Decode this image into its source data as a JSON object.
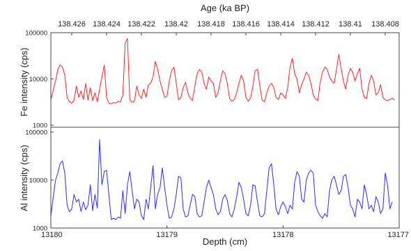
{
  "chart_data": [
    {
      "type": "line",
      "panel": "top",
      "xlabel_top": "Age (ka BP)",
      "ylabel": "Fe intensity (cps)",
      "yscale": "log",
      "ylim": [
        1000,
        100000
      ],
      "yticks": [
        1000,
        10000,
        100000
      ],
      "ytick_labels": [
        "1000",
        "10000",
        "100000"
      ],
      "top_axis_ticks": [
        138.426,
        138.424,
        138.422,
        138.42,
        138.418,
        138.416,
        138.414,
        138.412,
        138.41,
        138.408
      ],
      "top_axis_tick_labels": [
        "138.426",
        "138.424",
        "138.422",
        "138.42",
        "138.418",
        "138.416",
        "138.414",
        "138.412",
        "138.41",
        "138.408"
      ],
      "color": "#ff2020",
      "grid": false,
      "series": [
        {
          "depth_cm": [
            13180.0,
            13179.96,
            13179.94,
            13179.92,
            13179.9,
            13179.88,
            13179.86,
            13179.84,
            13179.82,
            13179.8,
            13179.78,
            13179.76,
            13179.74,
            13179.72,
            13179.7,
            13179.68,
            13179.66,
            13179.64,
            13179.62,
            13179.6,
            13179.58,
            13179.56,
            13179.54,
            13179.52,
            13179.5,
            13179.48,
            13179.46,
            13179.44,
            13179.42,
            13179.4,
            13179.38,
            13179.36,
            13179.34,
            13179.32,
            13179.3,
            13179.28,
            13179.26,
            13179.24,
            13179.22,
            13179.2,
            13179.18,
            13179.16,
            13179.14,
            13179.12,
            13179.1,
            13179.08,
            13179.06,
            13179.04,
            13179.02,
            13179.0,
            13178.98,
            13178.96,
            13178.94,
            13178.92,
            13178.9,
            13178.88,
            13178.86,
            13178.84,
            13178.82,
            13178.8,
            13178.78,
            13178.76,
            13178.74,
            13178.72,
            13178.7,
            13178.68,
            13178.66,
            13178.64,
            13178.62,
            13178.6,
            13178.58,
            13178.56,
            13178.54,
            13178.52,
            13178.5,
            13178.48,
            13178.46,
            13178.44,
            13178.42,
            13178.4,
            13178.38,
            13178.36,
            13178.34,
            13178.32,
            13178.3,
            13178.28,
            13178.26,
            13178.24,
            13178.22,
            13178.2,
            13178.18,
            13178.16,
            13178.14,
            13178.12,
            13178.1,
            13178.08,
            13178.06,
            13178.04,
            13178.02,
            13178.0,
            13177.98,
            13177.96,
            13177.94,
            13177.92,
            13177.9,
            13177.88,
            13177.86,
            13177.84,
            13177.82,
            13177.8,
            13177.78,
            13177.76,
            13177.74,
            13177.72,
            13177.7,
            13177.68,
            13177.66,
            13177.64,
            13177.62,
            13177.6,
            13177.58,
            13177.56,
            13177.54,
            13177.52,
            13177.5,
            13177.48,
            13177.46,
            13177.44,
            13177.42,
            13177.4,
            13177.38,
            13177.36,
            13177.34,
            13177.32,
            13177.3,
            13177.28,
            13177.26,
            13177.24,
            13177.22,
            13177.2,
            13177.18,
            13177.16,
            13177.14,
            13177.12,
            13177.1,
            13177.08,
            13177.06,
            13177.04,
            13177.02,
            13177.0
          ],
          "intensity_cps": [
            3500,
            9000,
            16000,
            20000,
            18000,
            12000,
            4000,
            3200,
            3000,
            3400,
            7000,
            4000,
            5500,
            3600,
            8000,
            3500,
            6500,
            3400,
            5000,
            3200,
            6000,
            11000,
            20000,
            4000,
            3000,
            2900,
            3100,
            3000,
            3300,
            3200,
            4500,
            60000,
            75000,
            3500,
            3100,
            3300,
            7000,
            4500,
            3800,
            6000,
            4000,
            7500,
            8000,
            11000,
            24000,
            16000,
            9000,
            6000,
            4000,
            4200,
            9000,
            15000,
            18000,
            8000,
            3500,
            4000,
            6500,
            8500,
            5000,
            3800,
            3400,
            7000,
            13000,
            16000,
            14000,
            8000,
            6000,
            11000,
            9000,
            8000,
            4000,
            5000,
            9000,
            15000,
            13000,
            8000,
            3700,
            3300,
            3600,
            5000,
            8000,
            12000,
            9000,
            4000,
            3300,
            3800,
            7000,
            15000,
            16000,
            7000,
            3500,
            3200,
            5000,
            7000,
            8000,
            6500,
            4000,
            3600,
            5000,
            4500,
            3800,
            6500,
            18000,
            28000,
            13000,
            10000,
            5000,
            7500,
            10000,
            14000,
            12000,
            8000,
            4500,
            3700,
            3400,
            8500,
            14000,
            18000,
            16000,
            11000,
            9000,
            8000,
            16000,
            34000,
            17000,
            9000,
            6000,
            12000,
            17000,
            14000,
            9000,
            13000,
            17000,
            6000,
            4000,
            3800,
            8000,
            12000,
            9000,
            4500,
            5000,
            7500,
            4000,
            3500,
            3400,
            3600,
            3800,
            3500
          ]
        }
      ]
    },
    {
      "type": "line",
      "panel": "bottom",
      "xlabel": "Depth (cm)",
      "ylabel": "Al intensity (cps)",
      "yscale": "log",
      "ylim": [
        1000,
        100000
      ],
      "xlim": [
        13180,
        13177
      ],
      "xticks": [
        13180,
        13179,
        13178,
        13177
      ],
      "xtick_labels": [
        "13180",
        "13179",
        "13178",
        "13177"
      ],
      "yticks": [
        1000,
        10000,
        100000
      ],
      "ytick_labels": [
        "1000",
        "10000",
        "100000"
      ],
      "color": "#2a2aff",
      "grid": false,
      "series": [
        {
          "depth_cm": [
            13180.0,
            13179.96,
            13179.94,
            13179.92,
            13179.9,
            13179.88,
            13179.86,
            13179.84,
            13179.82,
            13179.8,
            13179.78,
            13179.76,
            13179.74,
            13179.72,
            13179.7,
            13179.68,
            13179.66,
            13179.64,
            13179.62,
            13179.6,
            13179.58,
            13179.56,
            13179.54,
            13179.52,
            13179.5,
            13179.48,
            13179.46,
            13179.44,
            13179.42,
            13179.4,
            13179.38,
            13179.36,
            13179.34,
            13179.32,
            13179.3,
            13179.28,
            13179.26,
            13179.24,
            13179.22,
            13179.2,
            13179.18,
            13179.16,
            13179.14,
            13179.12,
            13179.1,
            13179.08,
            13179.06,
            13179.04,
            13179.02,
            13179.0,
            13178.98,
            13178.96,
            13178.94,
            13178.92,
            13178.9,
            13178.88,
            13178.86,
            13178.84,
            13178.82,
            13178.8,
            13178.78,
            13178.76,
            13178.74,
            13178.72,
            13178.7,
            13178.68,
            13178.66,
            13178.64,
            13178.62,
            13178.6,
            13178.58,
            13178.56,
            13178.54,
            13178.52,
            13178.5,
            13178.48,
            13178.46,
            13178.44,
            13178.42,
            13178.4,
            13178.38,
            13178.36,
            13178.34,
            13178.32,
            13178.3,
            13178.28,
            13178.26,
            13178.24,
            13178.22,
            13178.2,
            13178.18,
            13178.16,
            13178.14,
            13178.12,
            13178.1,
            13178.08,
            13178.06,
            13178.04,
            13178.02,
            13178.0,
            13177.98,
            13177.96,
            13177.94,
            13177.92,
            13177.9,
            13177.88,
            13177.86,
            13177.84,
            13177.82,
            13177.8,
            13177.78,
            13177.76,
            13177.74,
            13177.72,
            13177.7,
            13177.68,
            13177.66,
            13177.64,
            13177.62,
            13177.6,
            13177.58,
            13177.56,
            13177.54,
            13177.52,
            13177.5,
            13177.48,
            13177.46,
            13177.44,
            13177.42,
            13177.4,
            13177.38,
            13177.36,
            13177.34,
            13177.32,
            13177.3,
            13177.28,
            13177.26,
            13177.24,
            13177.22,
            13177.2,
            13177.18,
            13177.16,
            13177.14,
            13177.12,
            13177.1,
            13177.08,
            13177.06,
            13177.04,
            13177.02,
            13177.0
          ],
          "intensity_cps": [
            1800,
            10000,
            14000,
            22000,
            25000,
            14000,
            3000,
            2200,
            2500,
            5000,
            3500,
            4000,
            2200,
            3500,
            2400,
            3000,
            8000,
            2300,
            5000,
            2600,
            70000,
            8000,
            15000,
            16000,
            5000,
            1500,
            1600,
            1500,
            1700,
            1600,
            6000,
            2000,
            8000,
            15000,
            6000,
            2500,
            4000,
            3500,
            1800,
            1500,
            4000,
            2500,
            7000,
            20000,
            2500,
            5000,
            7000,
            18000,
            7000,
            3000,
            1600,
            1700,
            2500,
            5000,
            12000,
            11000,
            2500,
            1700,
            1800,
            3000,
            5000,
            4500,
            2000,
            1700,
            1800,
            3500,
            7000,
            10000,
            7000,
            5000,
            2500,
            1900,
            2200,
            4000,
            5000,
            3800,
            2000,
            1700,
            2500,
            4500,
            9000,
            7000,
            4000,
            2000,
            1800,
            3000,
            8000,
            7500,
            3500,
            1800,
            1700,
            2000,
            6000,
            18000,
            22000,
            8000,
            2500,
            1900,
            2800,
            3500,
            2800,
            2000,
            3000,
            2500,
            9000,
            15000,
            12000,
            4000,
            3500,
            10000,
            14000,
            16000,
            14000,
            3000,
            2200,
            1800,
            1600,
            2000,
            1700,
            6000,
            10000,
            12000,
            8000,
            5000,
            6000,
            12000,
            13000,
            7000,
            3000,
            2500,
            1700,
            4000,
            3500,
            2500,
            8000,
            5000,
            2500,
            3000,
            2200,
            4500,
            3500,
            2000,
            2500,
            14000,
            8000,
            2500,
            3500
          ]
        }
      ]
    }
  ],
  "texts": {
    "top_axis_title": "Age (ka BP)",
    "bottom_axis_title": "Depth (cm)",
    "fe_ylabel": "Fe intensity (cps)",
    "al_ylabel": "Al intensity (cps)"
  }
}
